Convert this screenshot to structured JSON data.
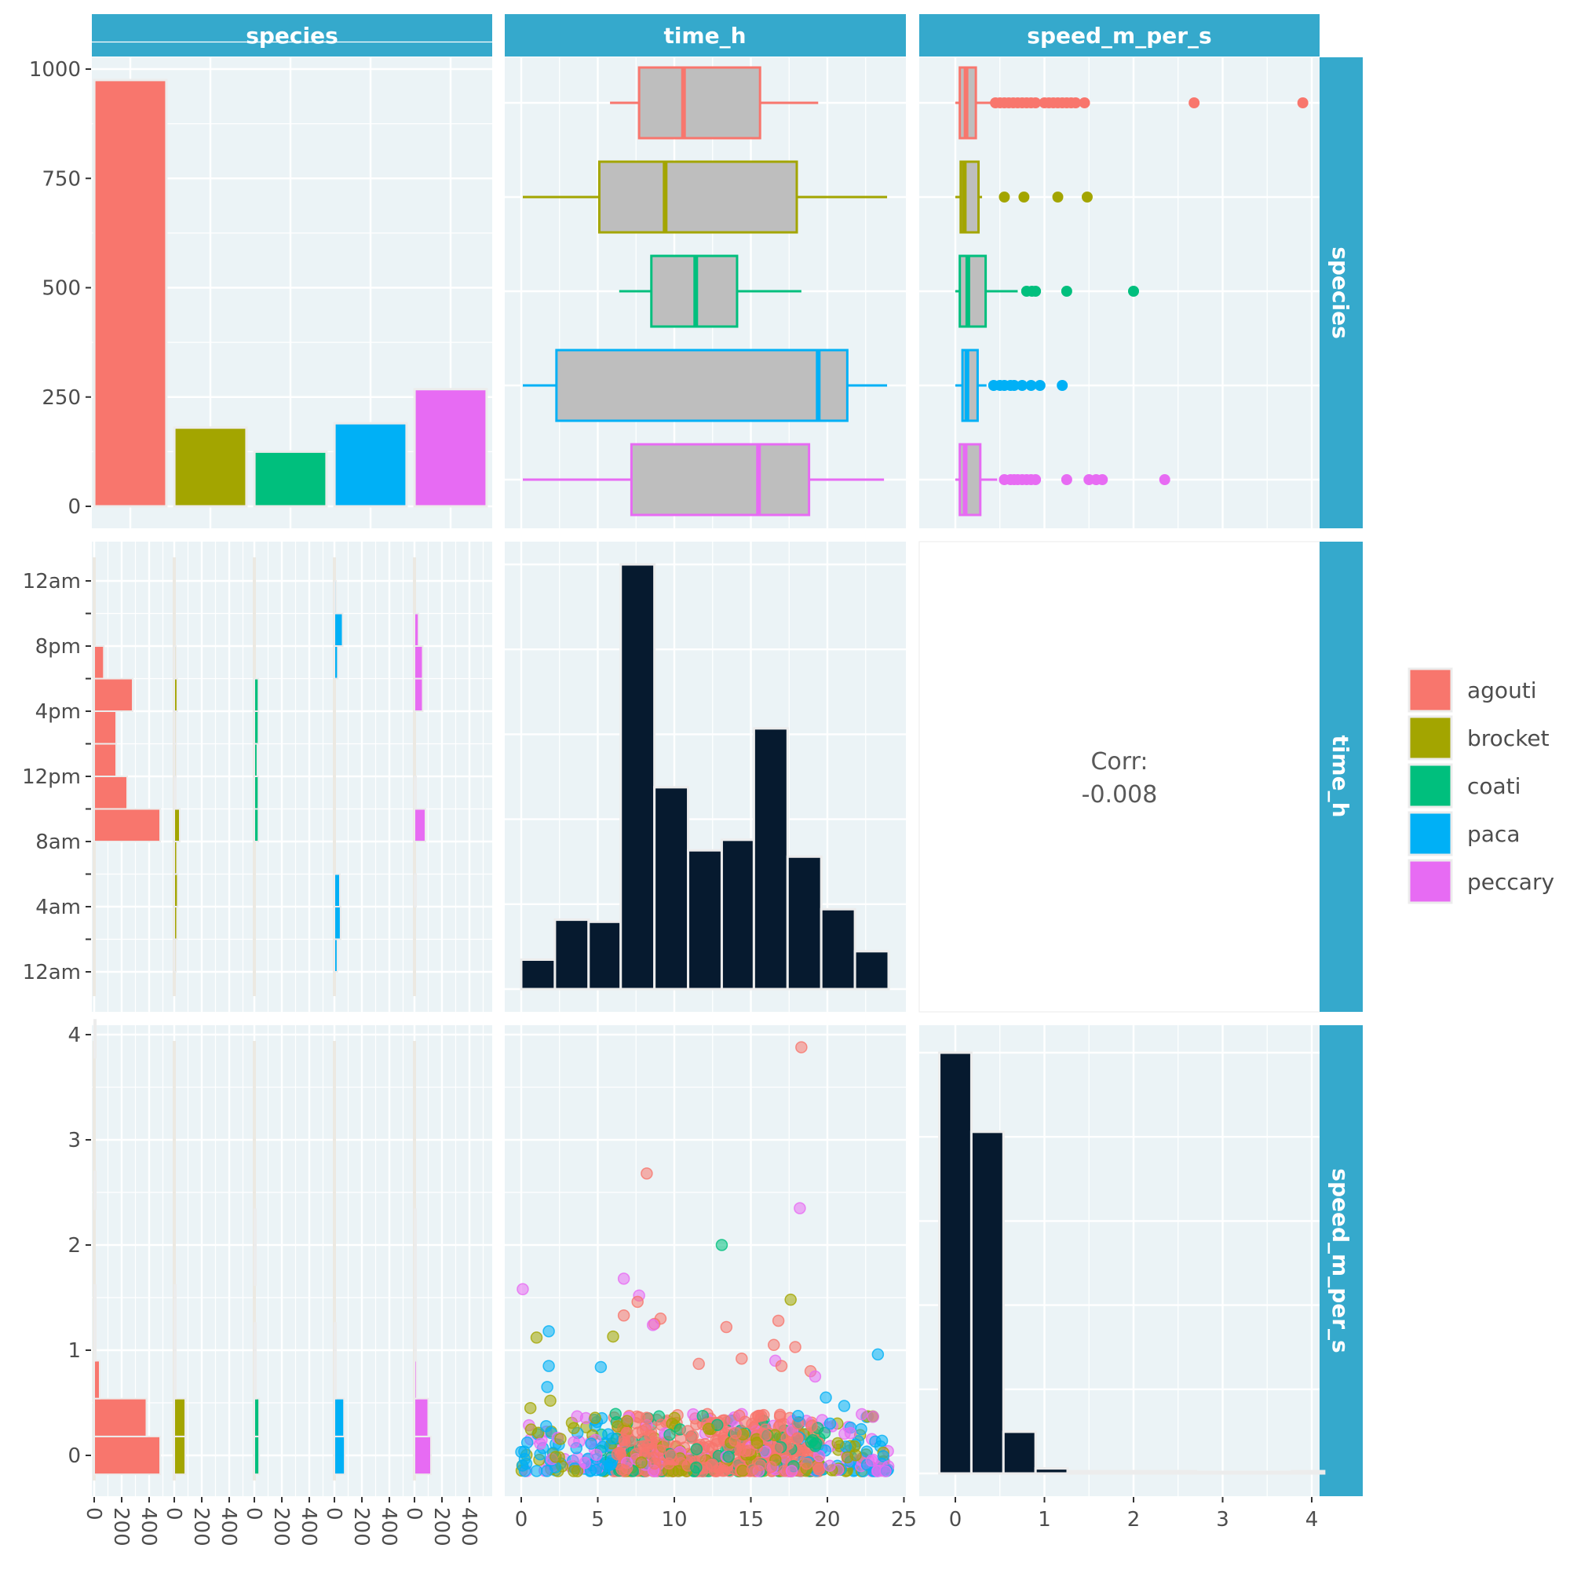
{
  "variables": [
    "species",
    "time_h",
    "speed_m_per_s"
  ],
  "colors": {
    "agouti": "#F8766D",
    "brocket": "#A3A500",
    "coati": "#00BF7D",
    "paca": "#00B0F6",
    "peccary": "#E76BF3",
    "panel_bg": "#EBF3F6",
    "grid": "#ffffff",
    "strip": "#35A9CC",
    "hist_fill": "#061A2F",
    "box_fill": "#BEBEBE",
    "axis_text": "#4d4d4d"
  },
  "legend": {
    "title": "",
    "entries": [
      "agouti",
      "brocket",
      "coati",
      "paca",
      "peccary"
    ]
  },
  "chart_data": [
    {
      "panel": "species-species",
      "type": "bar",
      "title": "species",
      "categories": [
        "agouti",
        "brocket",
        "coati",
        "paca",
        "peccary"
      ],
      "values": [
        975,
        180,
        125,
        190,
        268
      ],
      "ylim": [
        0,
        1000
      ],
      "yticks": [
        0,
        250,
        500,
        750,
        1000
      ],
      "ytick_labels": [
        "0",
        "250",
        "500",
        "750",
        "1000"
      ]
    },
    {
      "panel": "species-time_h",
      "type": "boxplot",
      "orientation": "horizontal",
      "xlim": [
        0,
        24
      ],
      "boxes": [
        {
          "species": "agouti",
          "whisker_low": 5.8,
          "q1": 7.7,
          "median": 10.6,
          "q3": 15.6,
          "whisker_high": 19.4,
          "outliers": []
        },
        {
          "species": "brocket",
          "whisker_low": 0.1,
          "q1": 5.1,
          "median": 9.4,
          "q3": 18.0,
          "whisker_high": 23.9,
          "outliers": []
        },
        {
          "species": "coati",
          "whisker_low": 6.4,
          "q1": 8.5,
          "median": 11.4,
          "q3": 14.1,
          "whisker_high": 18.3,
          "outliers": []
        },
        {
          "species": "paca",
          "whisker_low": 0.1,
          "q1": 2.3,
          "median": 19.4,
          "q3": 21.3,
          "whisker_high": 23.9,
          "outliers": []
        },
        {
          "species": "peccary",
          "whisker_low": 0.1,
          "q1": 7.2,
          "median": 15.5,
          "q3": 18.8,
          "whisker_high": 23.7,
          "outliers": []
        }
      ]
    },
    {
      "panel": "species-speed_m_per_s",
      "type": "boxplot",
      "orientation": "horizontal",
      "xlim": [
        0,
        4
      ],
      "boxes": [
        {
          "species": "agouti",
          "whisker_low": 0.0,
          "q1": 0.05,
          "median": 0.12,
          "q3": 0.23,
          "whisker_high": 0.44,
          "outliers": [
            0.45,
            0.5,
            0.55,
            0.6,
            0.65,
            0.7,
            0.75,
            0.8,
            0.85,
            0.9,
            1.0,
            1.05,
            1.1,
            1.15,
            1.2,
            1.25,
            1.3,
            1.35,
            1.45,
            2.68,
            3.9
          ]
        },
        {
          "species": "brocket",
          "whisker_low": 0.0,
          "q1": 0.06,
          "median": 0.1,
          "q3": 0.26,
          "whisker_high": 0.3,
          "outliers": [
            0.55,
            0.77,
            1.15,
            1.48
          ]
        },
        {
          "species": "coati",
          "whisker_low": 0.0,
          "q1": 0.05,
          "median": 0.14,
          "q3": 0.34,
          "whisker_high": 0.7,
          "outliers": [
            0.8,
            0.86,
            0.9,
            1.25,
            2.0
          ]
        },
        {
          "species": "paca",
          "whisker_low": 0.0,
          "q1": 0.08,
          "median": 0.13,
          "q3": 0.25,
          "whisker_high": 0.35,
          "outliers": [
            0.43,
            0.5,
            0.55,
            0.62,
            0.66,
            0.75,
            0.85,
            0.95,
            1.2
          ]
        },
        {
          "species": "peccary",
          "whisker_low": 0.0,
          "q1": 0.05,
          "median": 0.11,
          "q3": 0.28,
          "whisker_high": 0.47,
          "outliers": [
            0.55,
            0.62,
            0.66,
            0.7,
            0.75,
            0.8,
            0.85,
            0.9,
            1.25,
            1.5,
            1.58,
            1.65,
            2.35
          ]
        }
      ]
    },
    {
      "panel": "time_h-species",
      "type": "faceted-histogram",
      "orientation": "horizontal",
      "bins": [
        "0-2",
        "2-4",
        "4-6",
        "6-8",
        "8-10",
        "10-12",
        "12-14",
        "14-16",
        "16-18",
        "18-20",
        "20-22",
        "22-24"
      ],
      "ytick_labels": [
        "12am",
        "4am",
        "8am",
        "12pm",
        "4pm",
        "8pm",
        "12am"
      ],
      "ytick_values": [
        0,
        4,
        8,
        12,
        16,
        20,
        24
      ],
      "xtick_labels": [
        "0",
        "200",
        "400"
      ],
      "xlim": [
        0,
        500
      ],
      "series": [
        {
          "name": "agouti",
          "values": [
            0,
            0,
            0,
            0,
            480,
            240,
            160,
            160,
            280,
            70,
            0,
            0
          ]
        },
        {
          "name": "brocket",
          "values": [
            12,
            20,
            25,
            20,
            40,
            10,
            12,
            12,
            22,
            12,
            0,
            0
          ]
        },
        {
          "name": "coati",
          "values": [
            0,
            0,
            0,
            0,
            30,
            30,
            22,
            30,
            30,
            0,
            0,
            0
          ]
        },
        {
          "name": "paca",
          "values": [
            22,
            45,
            40,
            0,
            0,
            0,
            0,
            0,
            0,
            25,
            60,
            12
          ]
        },
        {
          "name": "peccary",
          "values": [
            0,
            0,
            10,
            0,
            80,
            10,
            0,
            0,
            60,
            60,
            30,
            0
          ]
        }
      ]
    },
    {
      "panel": "time_h-time_h",
      "type": "histogram",
      "xlim": [
        -1,
        25
      ],
      "bin_edges": [
        0,
        2.2,
        4.4,
        6.5,
        8.7,
        10.9,
        13.1,
        15.2,
        17.4,
        19.6,
        21.8,
        24
      ],
      "counts": [
        70,
        165,
        160,
        1010,
        480,
        330,
        355,
        620,
        315,
        190,
        90
      ]
    },
    {
      "panel": "time_h-speed_m_per_s",
      "type": "text",
      "label": "Corr:",
      "value": "-0.008"
    },
    {
      "panel": "speed_m_per_s-species",
      "type": "faceted-histogram",
      "orientation": "horizontal",
      "bins": [
        "-0.18-0.18",
        "0.18-0.54",
        "0.54-0.9",
        "0.9-1.26",
        "1.26-1.62",
        "1.62-1.98",
        "1.98-2.34",
        "2.34-2.7",
        "2.7-3.06",
        "3.06-3.42",
        "3.42-3.78",
        "3.78-4.14"
      ],
      "ytick_labels": [
        "0",
        "1",
        "2",
        "3",
        "4"
      ],
      "ytick_values": [
        0,
        1,
        2,
        3,
        4
      ],
      "xtick_labels": [
        "0",
        "200",
        "400"
      ],
      "xlim": [
        0,
        500
      ],
      "series": [
        {
          "name": "agouti",
          "values": [
            480,
            380,
            40,
            8,
            3,
            0,
            0,
            1,
            0,
            0,
            0,
            1
          ]
        },
        {
          "name": "brocket",
          "values": [
            80,
            80,
            8,
            2,
            2,
            0,
            0,
            0,
            0,
            0,
            0,
            0
          ]
        },
        {
          "name": "coati",
          "values": [
            35,
            35,
            6,
            3,
            0,
            1,
            1,
            0,
            0,
            0,
            0,
            0
          ]
        },
        {
          "name": "paca",
          "values": [
            75,
            70,
            10,
            3,
            0,
            0,
            0,
            0,
            0,
            0,
            0,
            0
          ]
        },
        {
          "name": "peccary",
          "values": [
            120,
            100,
            15,
            4,
            3,
            2,
            1,
            0,
            0,
            0,
            0,
            0
          ]
        }
      ]
    },
    {
      "panel": "speed_m_per_s-time_h",
      "type": "scatter",
      "xlabel": "time_h",
      "ylabel": "speed_m_per_s",
      "xlim": [
        -1,
        25
      ],
      "ylim": [
        -0.18,
        4.14
      ],
      "note": "~1740 points overall; values below are the labelled/visible outliers",
      "points": [
        {
          "species": "agouti",
          "x": 18.3,
          "y": 3.88
        },
        {
          "species": "agouti",
          "x": 8.2,
          "y": 2.68
        },
        {
          "species": "peccary",
          "x": 18.2,
          "y": 2.35
        },
        {
          "species": "coati",
          "x": 13.1,
          "y": 2.0
        },
        {
          "species": "peccary",
          "x": 6.7,
          "y": 1.68
        },
        {
          "species": "brocket",
          "x": 17.6,
          "y": 1.48
        },
        {
          "species": "peccary",
          "x": 0.1,
          "y": 1.58
        },
        {
          "species": "peccary",
          "x": 7.7,
          "y": 1.52
        },
        {
          "species": "agouti",
          "x": 7.6,
          "y": 1.46
        },
        {
          "species": "agouti",
          "x": 6.7,
          "y": 1.33
        },
        {
          "species": "agouti",
          "x": 9.1,
          "y": 1.3
        },
        {
          "species": "agouti",
          "x": 16.8,
          "y": 1.28
        },
        {
          "species": "agouti",
          "x": 8.7,
          "y": 1.25
        },
        {
          "species": "peccary",
          "x": 8.6,
          "y": 1.24
        },
        {
          "species": "agouti",
          "x": 13.4,
          "y": 1.22
        },
        {
          "species": "paca",
          "x": 1.8,
          "y": 1.18
        },
        {
          "species": "brocket",
          "x": 6.0,
          "y": 1.13
        },
        {
          "species": "brocket",
          "x": 1.0,
          "y": 1.12
        },
        {
          "species": "agouti",
          "x": 16.5,
          "y": 1.05
        },
        {
          "species": "agouti",
          "x": 17.9,
          "y": 1.03
        },
        {
          "species": "paca",
          "x": 23.3,
          "y": 0.96
        },
        {
          "species": "agouti",
          "x": 14.4,
          "y": 0.92
        },
        {
          "species": "peccary",
          "x": 16.6,
          "y": 0.9
        },
        {
          "species": "paca",
          "x": 1.8,
          "y": 0.85
        },
        {
          "species": "paca",
          "x": 5.2,
          "y": 0.84
        },
        {
          "species": "agouti",
          "x": 11.6,
          "y": 0.87
        },
        {
          "species": "agouti",
          "x": 17.0,
          "y": 0.85
        },
        {
          "species": "agouti",
          "x": 18.9,
          "y": 0.8
        },
        {
          "species": "peccary",
          "x": 19.2,
          "y": 0.75
        },
        {
          "species": "paca",
          "x": 19.9,
          "y": 0.55
        },
        {
          "species": "paca",
          "x": 21.1,
          "y": 0.47
        },
        {
          "species": "brocket",
          "x": 0.6,
          "y": 0.45
        },
        {
          "species": "brocket",
          "x": 1.9,
          "y": 0.52
        },
        {
          "species": "paca",
          "x": 1.7,
          "y": 0.65
        }
      ]
    },
    {
      "panel": "speed_m_per_s-speed_m_per_s",
      "type": "histogram",
      "xlim": [
        -0.2,
        4.2
      ],
      "bin_edges": [
        -0.18,
        0.18,
        0.54,
        0.9,
        1.26,
        1.62,
        1.98,
        2.34,
        2.7,
        3.06,
        3.42,
        3.78,
        4.14
      ],
      "counts": [
        1010,
        820,
        100,
        12,
        4,
        2,
        1,
        1,
        0,
        0,
        0,
        1
      ]
    }
  ],
  "axis": {
    "left_species_ticks": [
      "0",
      "250",
      "500",
      "750",
      "1000"
    ],
    "left_time_ticks": [
      "12am",
      "4am",
      "8am",
      "12pm",
      "4pm",
      "8pm",
      "12am"
    ],
    "left_speed_ticks": [
      "0",
      "1",
      "2",
      "3",
      "4"
    ],
    "bottom_time_ticks": [
      "0",
      "5",
      "10",
      "15",
      "20",
      "25"
    ],
    "bottom_speed_ticks": [
      "0",
      "1",
      "2",
      "3",
      "4"
    ],
    "bottom_species_ticks": [
      "0",
      "200",
      "400"
    ]
  }
}
